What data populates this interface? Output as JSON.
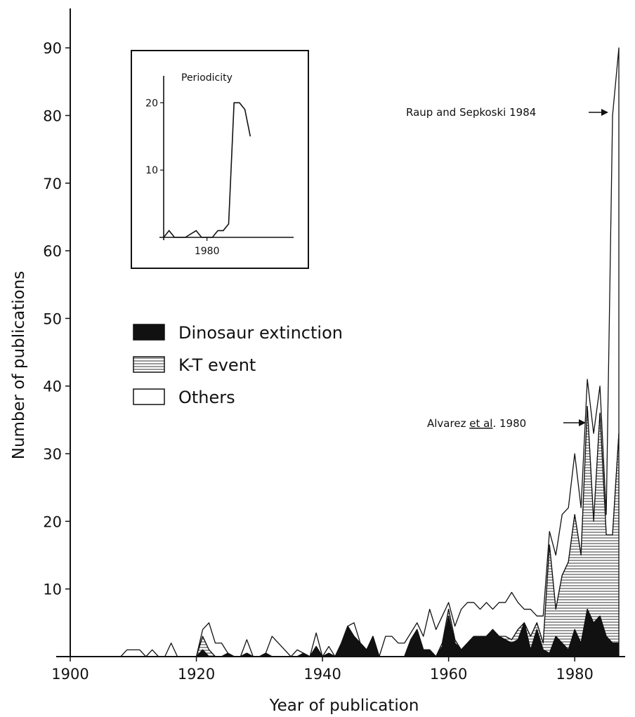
{
  "chart_data": [
    {
      "type": "area",
      "title": "",
      "xlabel": "Year of publication",
      "ylabel": "Number of publications",
      "xlim": [
        1900,
        1988
      ],
      "ylim": [
        0,
        95
      ],
      "xticks": [
        1900,
        1920,
        1940,
        1960,
        1980
      ],
      "yticks": [
        10,
        20,
        30,
        40,
        50,
        60,
        70,
        80,
        90
      ],
      "grid": false,
      "legend_position": "center-left",
      "x": [
        1900,
        1908,
        1909,
        1910,
        1911,
        1912,
        1913,
        1914,
        1915,
        1916,
        1917,
        1918,
        1919,
        1920,
        1921,
        1922,
        1923,
        1924,
        1925,
        1926,
        1927,
        1928,
        1929,
        1930,
        1931,
        1932,
        1933,
        1934,
        1935,
        1936,
        1937,
        1938,
        1939,
        1940,
        1941,
        1942,
        1943,
        1944,
        1945,
        1946,
        1947,
        1948,
        1949,
        1950,
        1951,
        1952,
        1953,
        1954,
        1955,
        1956,
        1957,
        1958,
        1959,
        1960,
        1961,
        1962,
        1963,
        1964,
        1965,
        1966,
        1967,
        1968,
        1969,
        1970,
        1971,
        1972,
        1973,
        1974,
        1975,
        1976,
        1977,
        1978,
        1979,
        1980,
        1981,
        1982,
        1983,
        1984,
        1985,
        1986,
        1987
      ],
      "series": [
        {
          "name": "Dinosaur extinction",
          "fill": "solid-black",
          "values": [
            0,
            0,
            0,
            0,
            0,
            0,
            0,
            0,
            0,
            0,
            0,
            0,
            0,
            0,
            1,
            0,
            0,
            0,
            0.5,
            0,
            0,
            0.5,
            0,
            0,
            0.5,
            0,
            0,
            0,
            0,
            0,
            0.5,
            0,
            1.5,
            0,
            0.5,
            0,
            2,
            4.5,
            3,
            2,
            1,
            3,
            0,
            0,
            0,
            0,
            0,
            2.5,
            4,
            1,
            1,
            0,
            1.5,
            6,
            2,
            1,
            2,
            3,
            3,
            3,
            4,
            3,
            2.5,
            2,
            2.5,
            5,
            1,
            4,
            1,
            0.5,
            3,
            2,
            1,
            4,
            2,
            7,
            5,
            6,
            3,
            2,
            2
          ]
        },
        {
          "name": "K-T event",
          "fill": "horizontal-hatch",
          "values": [
            0,
            0,
            0,
            0,
            0,
            0,
            0,
            0,
            0,
            0,
            0,
            0,
            0,
            0,
            2,
            1,
            0,
            0,
            0,
            0,
            0,
            0,
            0,
            0,
            0,
            0,
            0,
            0,
            0,
            0,
            0,
            0,
            0,
            0,
            0,
            0,
            0,
            0,
            0,
            0,
            0,
            0,
            0,
            0,
            0,
            0,
            0,
            0,
            0,
            0,
            0,
            0,
            0.5,
            1,
            0.5,
            0,
            0,
            0,
            0,
            0,
            0,
            0,
            0.5,
            0.5,
            1.5,
            0,
            2,
            1,
            1,
            16,
            4,
            10,
            13,
            17,
            13,
            30,
            15,
            30,
            15,
            16,
            31
          ]
        },
        {
          "name": "Others",
          "fill": "white",
          "values": [
            0,
            0,
            1,
            1,
            1,
            0,
            1,
            0,
            0,
            2,
            0,
            0,
            0,
            0,
            1,
            4,
            2,
            2,
            0,
            0,
            0,
            2,
            0,
            0,
            0,
            3,
            2,
            1,
            0,
            1,
            0,
            0,
            2,
            0,
            1,
            0,
            0,
            0,
            2,
            0,
            0,
            0,
            0,
            3,
            3,
            2,
            2,
            1,
            1,
            2,
            6,
            4,
            4,
            1,
            2,
            6,
            6,
            5,
            4,
            5,
            3,
            5,
            5,
            7,
            4,
            2,
            4,
            1,
            4,
            2,
            8,
            9,
            8,
            9,
            7,
            4,
            13,
            4,
            3,
            62,
            57
          ]
        }
      ],
      "annotations": [
        {
          "text": "Raup and Sepkoski 1984",
          "x": 1985,
          "y": 84
        },
        {
          "text_before": "Alvarez ",
          "text_emph": "et al",
          "text_after": ". 1980",
          "x": 1981,
          "y": 36
        }
      ]
    },
    {
      "type": "line",
      "title": "Periodicity",
      "xlim": [
        1976,
        1988
      ],
      "ylim": [
        0,
        24
      ],
      "xticks": [
        1980
      ],
      "yticks": [
        10,
        20
      ],
      "x": [
        1976,
        1976.5,
        1977,
        1978,
        1979,
        1979.5,
        1980,
        1980.5,
        1981,
        1981.5,
        1982,
        1982.5,
        1983,
        1983.5,
        1984
      ],
      "values": [
        0,
        1,
        0,
        0,
        1,
        0,
        0,
        0,
        1,
        1,
        2,
        20,
        20,
        19,
        15
      ]
    }
  ]
}
